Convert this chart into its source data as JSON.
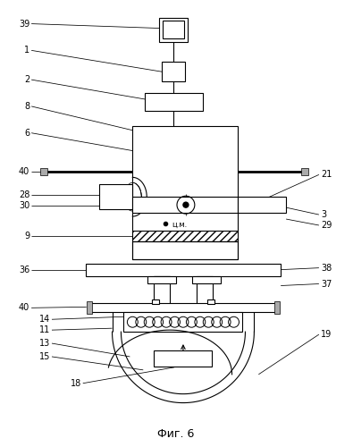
{
  "title": "Фиг. 6",
  "bg_color": "#ffffff",
  "line_color": "#000000",
  "lw": 0.8
}
